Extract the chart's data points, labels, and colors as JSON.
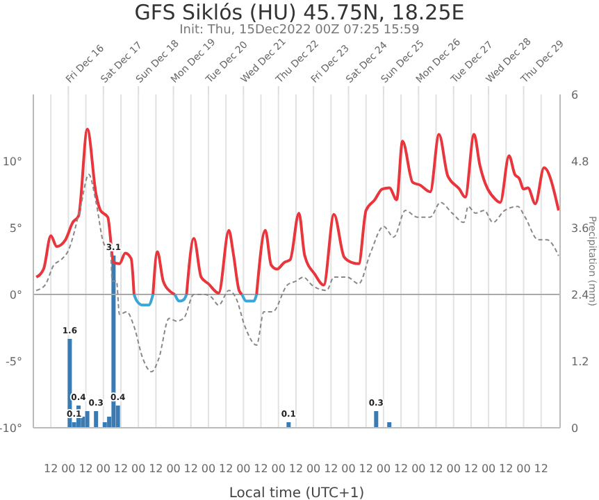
{
  "chart_data": {
    "type": "line",
    "title": "GFS Siklós (HU) 45.75N, 18.25E",
    "subtitle": "Init: Thu, 15Dec2022 00Z 07:25 15:59",
    "xlabel": "Local time (UTC+1)",
    "y2label": "Precipitation (mm)",
    "x": [
      "2022-12-15T02:00",
      "2022-12-15T07:00",
      "2022-12-15T12:00",
      "2022-12-15T16:00",
      "2022-12-15T22:00",
      "2022-12-16T03:00",
      "2022-12-16T07:00",
      "2022-12-16T13:00",
      "2022-12-16T19:00",
      "2022-12-16T22:00",
      "2022-12-17T03:00",
      "2022-12-17T07:00",
      "2022-12-17T11:00",
      "2022-12-17T15:00",
      "2022-12-17T19:00",
      "2022-12-17T21:00",
      "2022-12-17T23:00",
      "2022-12-18T03:00",
      "2022-12-18T07:00",
      "2022-12-18T10:00",
      "2022-12-18T13:00",
      "2022-12-18T17:00",
      "2022-12-18T22:00",
      "2022-12-19T01:00",
      "2022-12-19T04:00",
      "2022-12-19T07:00",
      "2022-12-19T09:00",
      "2022-12-19T14:00",
      "2022-12-19T19:00",
      "2022-12-20T00:00",
      "2022-12-20T07:00",
      "2022-12-20T14:00",
      "2022-12-20T17:00",
      "2022-12-20T21:00",
      "2022-12-20T23:00",
      "2022-12-21T02:00",
      "2022-12-21T07:00",
      "2022-12-21T09:00",
      "2022-12-21T15:00",
      "2022-12-21T19:00",
      "2022-12-21T23:00",
      "2022-12-22T04:00",
      "2022-12-22T08:00",
      "2022-12-22T14:00",
      "2022-12-22T18:00",
      "2022-12-23T01:00",
      "2022-12-23T07:00",
      "2022-12-23T14:00",
      "2022-12-23T21:00",
      "2022-12-24T02:00",
      "2022-12-24T07:00",
      "2022-12-24T12:00",
      "2022-12-24T18:00",
      "2022-12-24T23:00",
      "2022-12-25T04:00",
      "2022-12-25T09:00",
      "2022-12-25T13:00",
      "2022-12-25T20:00",
      "2022-12-26T01:00",
      "2022-12-26T08:00",
      "2022-12-26T14:00",
      "2022-12-26T20:00",
      "2022-12-27T04:00",
      "2022-12-27T08:00",
      "2022-12-27T14:00",
      "2022-12-27T18:00",
      "2022-12-28T05:00",
      "2022-12-28T08:00",
      "2022-12-28T14:00",
      "2022-12-28T18:00",
      "2022-12-28T21:00",
      "2022-12-29T00:00",
      "2022-12-29T03:00",
      "2022-12-29T08:00",
      "2022-12-29T14:00",
      "2022-12-30T00:00"
    ],
    "series": [
      {
        "color": "#e8363c",
        "values": [
          1.3,
          1.9,
          4.4,
          3.6,
          4.1,
          5.4,
          5.9,
          12.4,
          7.5,
          6.3,
          5.8,
          2.4,
          2.3,
          3.1,
          2.7,
          0,
          null,
          null,
          null,
          0,
          3.2,
          1.0,
          0.2,
          0,
          null,
          null,
          0,
          4.2,
          1.3,
          0.8,
          0.1,
          4.8,
          3.1,
          0.3,
          0,
          null,
          null,
          0,
          4.8,
          2.2,
          1.9,
          2.4,
          2.6,
          6.1,
          2.9,
          1.5,
          0.7,
          6.0,
          2.8,
          2.4,
          2.3,
          6.3,
          7.1,
          7.9,
          8.0,
          7.1,
          11.5,
          8.4,
          8.2,
          7.7,
          12.0,
          8.9,
          7.9,
          7.3,
          12.0,
          9.7,
          7.1,
          6.9,
          10.4,
          9.0,
          8.7,
          7.9,
          8.0,
          6.8,
          9.5,
          6.3
        ]
      },
      {
        "color": "#3aa6d8",
        "values": [
          null,
          null,
          null,
          null,
          null,
          null,
          null,
          null,
          null,
          null,
          null,
          null,
          null,
          null,
          null,
          0,
          -0.5,
          -0.8,
          -0.8,
          0,
          null,
          null,
          null,
          0,
          -0.5,
          -0.4,
          0,
          null,
          null,
          null,
          null,
          null,
          null,
          null,
          0,
          -0.5,
          -0.5,
          0,
          null,
          null,
          null,
          null,
          null,
          null,
          null,
          null,
          null,
          null,
          null,
          null,
          null,
          null,
          null,
          null,
          null,
          null,
          null,
          null,
          null,
          null,
          null,
          null,
          null,
          null,
          null,
          null,
          null,
          null,
          null,
          null,
          null,
          null,
          null,
          null,
          null,
          null
        ]
      },
      {
        "color": "#888888",
        "line_style": "dashed",
        "x": [
          "2022-12-15T02:00",
          "2022-12-15T08:00",
          "2022-12-15T14:00",
          "2022-12-15T19:00",
          "2022-12-16T00:00",
          "2022-12-16T08:00",
          "2022-12-16T14:00",
          "2022-12-16T19:00",
          "2022-12-17T00:00",
          "2022-12-17T05:00",
          "2022-12-17T06:00",
          "2022-12-17T09:00",
          "2022-12-17T11:00",
          "2022-12-17T16:00",
          "2022-12-17T21:00",
          "2022-12-18T03:00",
          "2022-12-18T09:00",
          "2022-12-18T14:00",
          "2022-12-18T21:00",
          "2022-12-19T02:00",
          "2022-12-19T07:00",
          "2022-12-19T14:00",
          "2022-12-19T21:00",
          "2022-12-20T02:00",
          "2022-12-20T07:00",
          "2022-12-20T14:00",
          "2022-12-20T19:00",
          "2022-12-21T01:00",
          "2022-12-21T09:00",
          "2022-12-21T14:00",
          "2022-12-21T20:00",
          "2022-12-22T06:00",
          "2022-12-22T12:00",
          "2022-12-22T17:00",
          "2022-12-22T23:00",
          "2022-12-23T09:00",
          "2022-12-23T14:00",
          "2022-12-23T23:00",
          "2022-12-24T07:00",
          "2022-12-24T15:00",
          "2022-12-25T00:00",
          "2022-12-25T07:00",
          "2022-12-25T15:00",
          "2022-12-25T23:00",
          "2022-12-26T08:00",
          "2022-12-26T15:00",
          "2022-12-26T23:00",
          "2022-12-27T07:00",
          "2022-12-27T10:00",
          "2022-12-27T15:00",
          "2022-12-27T21:00",
          "2022-12-28T03:00",
          "2022-12-28T11:00",
          "2022-12-28T20:00",
          "2022-12-29T01:00",
          "2022-12-29T10:00",
          "2022-12-29T16:00",
          "2022-12-30T00:00"
        ],
        "values": [
          0.3,
          0.7,
          2.2,
          2.6,
          3.3,
          6.4,
          9.0,
          6.9,
          3.9,
          3.1,
          1.0,
          1.0,
          -1.5,
          -1.3,
          -2.4,
          -4.8,
          -5.8,
          -4.8,
          -1.8,
          -2.0,
          -1.8,
          0,
          0,
          -0.2,
          -0.8,
          0.3,
          -0.3,
          -2.4,
          -3.8,
          -1.3,
          -1.3,
          0.7,
          1.0,
          1.3,
          0.7,
          0.3,
          1.3,
          1.3,
          0.8,
          3.1,
          5.1,
          4.3,
          6.3,
          5.8,
          5.8,
          6.9,
          6.1,
          5.4,
          6.6,
          6.1,
          6.3,
          5.4,
          6.3,
          6.6,
          5.8,
          4.1,
          4.1,
          2.9
        ]
      },
      {
        "type": "bar",
        "axis": "y2",
        "color": "#3b7bb3",
        "x": [
          "2022-12-16T01:00",
          "2022-12-16T04:00",
          "2022-12-16T07:00",
          "2022-12-16T10:00",
          "2022-12-16T13:00",
          "2022-12-16T19:00",
          "2022-12-17T01:00",
          "2022-12-17T04:00",
          "2022-12-17T07:00",
          "2022-12-17T10:00",
          "2022-12-22T07:00",
          "2022-12-24T19:00",
          "2022-12-25T04:00"
        ],
        "values": [
          1.6,
          0.1,
          0.4,
          0.2,
          0.3,
          0.3,
          0.1,
          0.2,
          3.1,
          0.4,
          0.1,
          0.3,
          0.1
        ],
        "value_labels": [
          "1.6",
          "0.1",
          "0.4",
          null,
          null,
          "0.3",
          null,
          null,
          "3.1",
          "0.4",
          "0.1",
          "0.3",
          null
        ]
      }
    ],
    "xlim": [
      "2022-12-15T00:00",
      "2022-12-30T01:00"
    ],
    "xticks": [
      {
        "value": "2022-12-15T12:00",
        "label": "12"
      },
      {
        "value": "2022-12-16T00:00",
        "label": "00"
      },
      {
        "value": "2022-12-16T12:00",
        "label": "12"
      },
      {
        "value": "2022-12-17T00:00",
        "label": "00"
      },
      {
        "value": "2022-12-17T12:00",
        "label": "12"
      },
      {
        "value": "2022-12-18T00:00",
        "label": "00"
      },
      {
        "value": "2022-12-18T12:00",
        "label": "12"
      },
      {
        "value": "2022-12-19T00:00",
        "label": "00"
      },
      {
        "value": "2022-12-19T12:00",
        "label": "12"
      },
      {
        "value": "2022-12-20T00:00",
        "label": "00"
      },
      {
        "value": "2022-12-20T12:00",
        "label": "12"
      },
      {
        "value": "2022-12-21T00:00",
        "label": "00"
      },
      {
        "value": "2022-12-21T12:00",
        "label": "12"
      },
      {
        "value": "2022-12-22T00:00",
        "label": "00"
      },
      {
        "value": "2022-12-22T12:00",
        "label": "12"
      },
      {
        "value": "2022-12-23T00:00",
        "label": "00"
      },
      {
        "value": "2022-12-23T12:00",
        "label": "12"
      },
      {
        "value": "2022-12-24T00:00",
        "label": "00"
      },
      {
        "value": "2022-12-24T12:00",
        "label": "12"
      },
      {
        "value": "2022-12-25T00:00",
        "label": "00"
      },
      {
        "value": "2022-12-25T12:00",
        "label": "12"
      },
      {
        "value": "2022-12-26T00:00",
        "label": "00"
      },
      {
        "value": "2022-12-26T12:00",
        "label": "12"
      },
      {
        "value": "2022-12-27T00:00",
        "label": "00"
      },
      {
        "value": "2022-12-27T12:00",
        "label": "12"
      },
      {
        "value": "2022-12-28T00:00",
        "label": "00"
      },
      {
        "value": "2022-12-28T12:00",
        "label": "12"
      },
      {
        "value": "2022-12-29T00:00",
        "label": "00"
      },
      {
        "value": "2022-12-29T12:00",
        "label": "12"
      }
    ],
    "x2lim": [
      "2022-12-15T00:00",
      "2022-12-30T01:00"
    ],
    "x2ticks": [
      {
        "value": "2022-12-16T00:00",
        "label": "Fri Dec 16"
      },
      {
        "value": "2022-12-17T00:00",
        "label": "Sat Dec 17"
      },
      {
        "value": "2022-12-18T00:00",
        "label": "Sun Dec 18"
      },
      {
        "value": "2022-12-19T00:00",
        "label": "Mon Dec 19"
      },
      {
        "value": "2022-12-20T00:00",
        "label": "Tue Dec 20"
      },
      {
        "value": "2022-12-21T00:00",
        "label": "Wed Dec 21"
      },
      {
        "value": "2022-12-22T00:00",
        "label": "Thu Dec 22"
      },
      {
        "value": "2022-12-23T00:00",
        "label": "Fri Dec 23"
      },
      {
        "value": "2022-12-24T00:00",
        "label": "Sat Dec 24"
      },
      {
        "value": "2022-12-25T00:00",
        "label": "Sun Dec 25"
      },
      {
        "value": "2022-12-26T00:00",
        "label": "Mon Dec 26"
      },
      {
        "value": "2022-12-27T00:00",
        "label": "Tue Dec 27"
      },
      {
        "value": "2022-12-28T00:00",
        "label": "Wed Dec 28"
      },
      {
        "value": "2022-12-29T00:00",
        "label": "Thu Dec 29"
      }
    ],
    "ylim": [
      -10,
      15
    ],
    "yticks": [
      {
        "value": -10,
        "label": "-10°"
      },
      {
        "value": -5,
        "label": "-5°"
      },
      {
        "value": 0,
        "label": "0°"
      },
      {
        "value": 5,
        "label": "5°"
      },
      {
        "value": 10,
        "label": "10°"
      }
    ],
    "y2lim": [
      0,
      6
    ],
    "y2ticks": [
      0,
      1.2,
      2.4,
      3.6,
      4.8,
      6
    ],
    "ref_lines": [
      {
        "axis": "y",
        "value": 0,
        "color": "#aaaaaa"
      }
    ],
    "grid": "x",
    "legend": false,
    "marker": "none",
    "line_style": "solid"
  }
}
